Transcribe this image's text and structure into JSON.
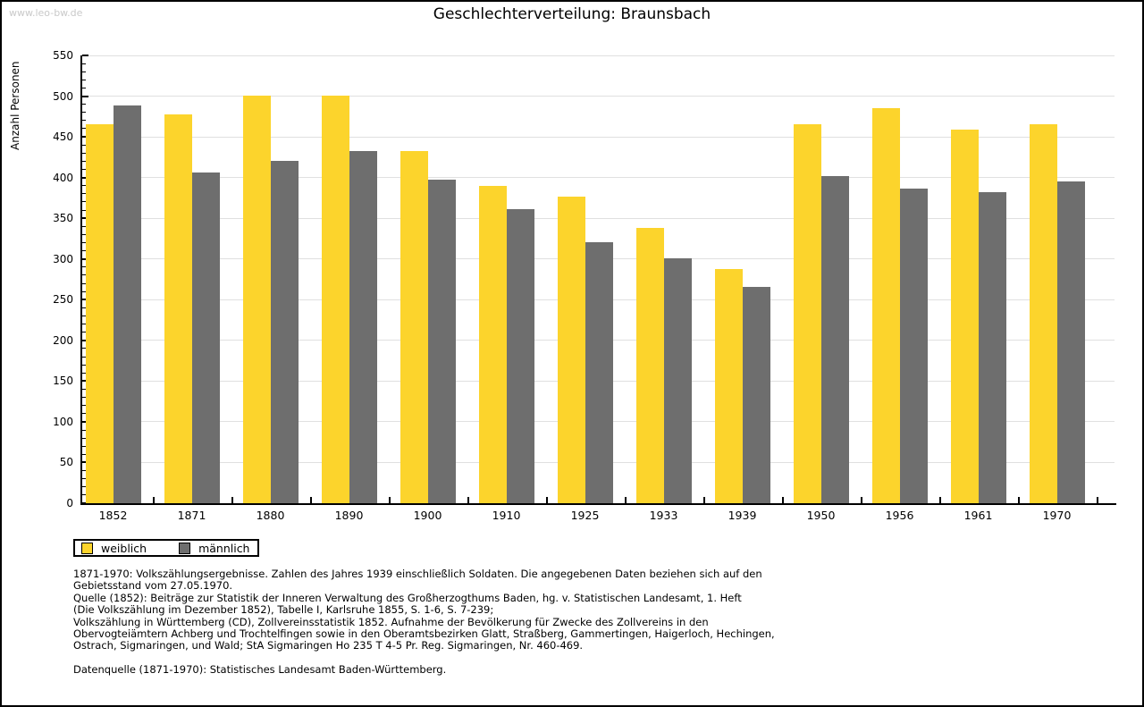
{
  "watermark": "www.leo-bw.de",
  "chart_data": {
    "type": "bar",
    "title": "Geschlechterverteilung: Braunsbach",
    "xlabel": "",
    "ylabel": "Anzahl Personen",
    "ylim": [
      0,
      550
    ],
    "ytick_step": 50,
    "minor_tick_step": 10,
    "grid": true,
    "legend_position": "bottom-left",
    "categories": [
      "1852",
      "1871",
      "1880",
      "1890",
      "1900",
      "1910",
      "1925",
      "1933",
      "1939",
      "1950",
      "1956",
      "1961",
      "1970"
    ],
    "series": [
      {
        "name": "weiblich",
        "color": "#fcd42c",
        "values": [
          465,
          478,
          501,
          501,
          433,
          390,
          377,
          338,
          288,
          466,
          485,
          459,
          465
        ]
      },
      {
        "name": "männlich",
        "color": "#6e6e6e",
        "values": [
          488,
          406,
          421,
          432,
          397,
          361,
          321,
          301,
          266,
          402,
          386,
          382,
          395
        ]
      }
    ]
  },
  "footer": {
    "lines": [
      "1871-1970: Volkszählungsergebnisse. Zahlen des Jahres 1939 einschließlich Soldaten. Die angegebenen Daten beziehen sich auf den",
      "Gebietsstand vom 27.05.1970.",
      "Quelle (1852): Beiträge zur Statistik der Inneren Verwaltung des Großherzogthums Baden, hg. v. Statistischen Landesamt, 1. Heft",
      "(Die Volkszählung im Dezember 1852), Tabelle I, Karlsruhe 1855, S. 1-6, S. 7-239;",
      "Volkszählung in Württemberg (CD), Zollvereinsstatistik 1852. Aufnahme der Bevölkerung für Zwecke des Zollvereins in den",
      "Obervogteiämtern Achberg und Trochtelfingen sowie in den Oberamtsbezirken Glatt, Straßberg, Gammertingen, Haigerloch, Hechingen,",
      "Ostrach, Sigmaringen, und Wald; StA Sigmaringen Ho 235 T 4-5 Pr. Reg. Sigmaringen, Nr. 460-469."
    ],
    "datasource": "Datenquelle (1871-1970): Statistisches Landesamt Baden-Württemberg."
  }
}
